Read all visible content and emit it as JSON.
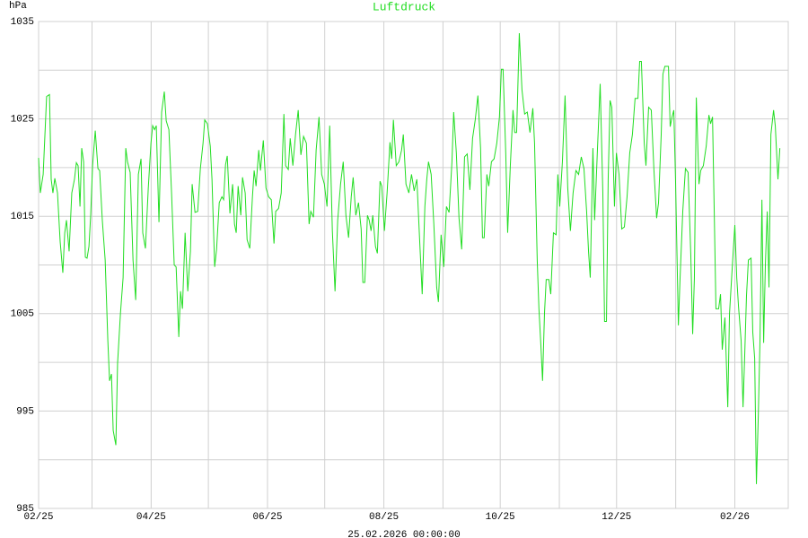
{
  "chart_data": {
    "type": "line",
    "title": "Luftdruck",
    "y_label": "hPa",
    "x_label": "25.02.2026 00:00:00",
    "color": "#22dd22",
    "grid": true,
    "xlim": [
      0,
      393
    ],
    "ylim": [
      985,
      1035
    ],
    "xticks": [
      {
        "value": 0,
        "label": "02/25"
      },
      {
        "value": 59,
        "label": "04/25"
      },
      {
        "value": 120,
        "label": "06/25"
      },
      {
        "value": 181,
        "label": "08/25"
      },
      {
        "value": 242,
        "label": "10/25"
      },
      {
        "value": 303,
        "label": "12/25"
      },
      {
        "value": 365,
        "label": "02/26"
      }
    ],
    "xminor": [
      28,
      89,
      150,
      212,
      273,
      334
    ],
    "yticks": [
      985,
      995,
      1005,
      1015,
      1025,
      1035
    ],
    "yminor": [
      990,
      1000,
      1010,
      1020,
      1030
    ],
    "x": [
      0,
      0.9,
      2.4,
      4.2,
      5.7,
      6.6,
      7.5,
      8.5,
      9.9,
      11.3,
      12.7,
      13.7,
      14.6,
      16,
      17.4,
      18.8,
      19.8,
      20.7,
      21.7,
      22.6,
      23.6,
      24.5,
      25.4,
      26.4,
      27.3,
      28.3,
      29.7,
      31.1,
      32,
      33.4,
      34.9,
      36.3,
      37.2,
      38.2,
      39.1,
      40.5,
      41.4,
      42.9,
      44.3,
      45.7,
      46.6,
      48,
      49.5,
      50.9,
      52.3,
      53.7,
      54.6,
      56,
      57.5,
      58.9,
      59.8,
      60.8,
      61.7,
      63.1,
      64.5,
      65.9,
      66.9,
      68.3,
      69.7,
      71.1,
      72.1,
      73.5,
      74.4,
      75.4,
      76.8,
      78.2,
      79.6,
      80.5,
      82,
      83.4,
      84.8,
      86.2,
      87.1,
      88.5,
      90,
      90.9,
      92.3,
      93.3,
      94.7,
      96.1,
      97,
      98,
      98.9,
      100.3,
      101.7,
      102.7,
      103.6,
      104.6,
      106,
      106.9,
      108.3,
      109.3,
      110.7,
      112.1,
      113,
      114,
      115.4,
      116.3,
      117.8,
      119.2,
      120.6,
      122,
      123.4,
      124.3,
      125.8,
      127.2,
      128.6,
      129.5,
      130.9,
      131.9,
      133.3,
      134.7,
      136.1,
      137.5,
      138.9,
      140.4,
      141.8,
      142.7,
      144.1,
      145.5,
      147,
      148.4,
      149.8,
      151.2,
      152.6,
      154,
      155.4,
      156.8,
      158.3,
      159.7,
      161.1,
      162.5,
      163.9,
      164.9,
      166.3,
      167.7,
      169.1,
      170,
      171,
      172.4,
      173.3,
      174.3,
      175.2,
      176.6,
      177.6,
      179,
      179.9,
      181.3,
      182.7,
      184.2,
      185.1,
      186,
      187.5,
      188.9,
      190.3,
      191.2,
      192.6,
      194.1,
      195.5,
      196.9,
      198.3,
      199.7,
      201.1,
      202.5,
      203.5,
      204.4,
      205.8,
      207.2,
      208.7,
      209.6,
      211,
      212.4,
      213.8,
      215.2,
      216.7,
      217.6,
      219,
      220.4,
      221.8,
      223.3,
      224.7,
      226.1,
      227.5,
      228.9,
      230.3,
      231.7,
      232.7,
      233.6,
      235,
      236,
      237.4,
      238.8,
      240.2,
      241.6,
      242.6,
      243.5,
      244.9,
      245.9,
      247.3,
      248.7,
      249.6,
      250.6,
      252,
      253.4,
      254.8,
      256.2,
      257.6,
      259.1,
      260,
      261.4,
      262.3,
      263.3,
      264.2,
      265.2,
      266.1,
      267.5,
      268.5,
      269.9,
      271.3,
      272.2,
      273.2,
      274.6,
      276,
      277.4,
      278.8,
      280.2,
      281.7,
      283.1,
      284.5,
      285.9,
      287.3,
      288.3,
      289.2,
      290.6,
      291.5,
      293,
      294.4,
      295.8,
      296.7,
      297.7,
      298.6,
      299.6,
      300.5,
      301.9,
      302.9,
      304.3,
      305.7,
      307.1,
      308.5,
      309.9,
      311.3,
      312.7,
      314.2,
      315.1,
      316,
      317.5,
      318.4,
      319.8,
      321.2,
      322.6,
      324,
      325,
      326.4,
      327.3,
      328.3,
      330.2,
      331.1,
      332.1,
      333,
      333.9,
      335.4,
      336.3,
      337.7,
      339.1,
      340.5,
      341.9,
      342.9,
      343.8,
      344.8,
      346.2,
      347.1,
      348.5,
      350,
      351.4,
      352.3,
      353.3,
      354.2,
      355.1,
      356.5,
      357.5,
      358.4,
      359.8,
      361.3,
      362.2,
      363.6,
      365,
      366,
      366.9,
      368.3,
      369.3,
      370.2,
      371.1,
      372.1,
      373.5,
      374.4,
      375.4,
      376.3,
      377.3,
      378.2,
      379.2,
      380.1,
      381,
      382,
      382.9,
      383.9,
      385.3,
      386.2,
      387.6,
      388.6
    ],
    "values": [
      1021,
      1017.4,
      1019.3,
      1027.3,
      1027.5,
      1018.8,
      1017.4,
      1018.9,
      1017.4,
      1012.4,
      1009.2,
      1013.3,
      1014.6,
      1011.4,
      1017.4,
      1018.8,
      1020.5,
      1020.2,
      1016,
      1022,
      1020.6,
      1010.8,
      1010.7,
      1011.9,
      1015.1,
      1020.2,
      1023.8,
      1019.9,
      1019.7,
      1014.6,
      1010.5,
      1002.2,
      998.1,
      998.8,
      993,
      991.5,
      999.9,
      1005,
      1008.7,
      1022,
      1020.6,
      1019.5,
      1010.5,
      1006.4,
      1019.3,
      1020.9,
      1013.3,
      1011.7,
      1017.9,
      1022.5,
      1024.3,
      1023.9,
      1024.3,
      1014.4,
      1025.7,
      1027.8,
      1024.8,
      1023.9,
      1017.4,
      1010,
      1009.8,
      1002.6,
      1007.3,
      1005.5,
      1013.3,
      1007.3,
      1011.4,
      1018.3,
      1015.4,
      1015.5,
      1019.9,
      1022.5,
      1024.9,
      1024.5,
      1022.2,
      1018.8,
      1009.8,
      1011.6,
      1016.4,
      1017,
      1016.7,
      1020.3,
      1021.2,
      1015.3,
      1018.3,
      1014.2,
      1013.3,
      1018.1,
      1015.1,
      1019,
      1017.4,
      1012.6,
      1011.7,
      1017,
      1019.7,
      1018.1,
      1021.8,
      1019.7,
      1022.8,
      1017.9,
      1017,
      1016.7,
      1012.2,
      1015.5,
      1015.8,
      1017.4,
      1025.5,
      1020.2,
      1019.8,
      1023,
      1020.2,
      1023.4,
      1025.9,
      1021.3,
      1023.2,
      1022.5,
      1014.2,
      1015.5,
      1014.9,
      1021.8,
      1025.2,
      1019.3,
      1018.3,
      1016,
      1024.3,
      1013.5,
      1007.3,
      1014.6,
      1018.3,
      1020.6,
      1015.1,
      1012.8,
      1017,
      1019,
      1015.1,
      1016.4,
      1013.7,
      1008.2,
      1008.2,
      1015.1,
      1014.6,
      1013.5,
      1015.1,
      1011.9,
      1011.2,
      1018.6,
      1018.1,
      1013.5,
      1017.4,
      1022.6,
      1020.9,
      1024.9,
      1020.2,
      1020.6,
      1021.8,
      1023.4,
      1018.3,
      1017.4,
      1019.3,
      1017.6,
      1018.8,
      1012.8,
      1007,
      1016,
      1018.8,
      1020.6,
      1019.3,
      1014.2,
      1007.7,
      1006.2,
      1013.1,
      1009.8,
      1016,
      1015.4,
      1020.6,
      1025.7,
      1021.5,
      1014.8,
      1011.6,
      1021.1,
      1021.4,
      1017.7,
      1023,
      1024.9,
      1027.4,
      1022,
      1012.8,
      1012.8,
      1019.3,
      1018.1,
      1020.6,
      1020.9,
      1022.5,
      1025.2,
      1030.1,
      1030.1,
      1021.5,
      1013.3,
      1020.2,
      1025.9,
      1023.6,
      1023.6,
      1033.8,
      1028,
      1025.5,
      1025.7,
      1023.6,
      1026.1,
      1022.5,
      1010.5,
      1005.5,
      1001.8,
      998.1,
      1005,
      1008.5,
      1008.5,
      1007,
      1013.3,
      1013.1,
      1019.3,
      1016,
      1020.6,
      1027.4,
      1017.9,
      1013.5,
      1017.4,
      1019.7,
      1019.3,
      1021.1,
      1019.9,
      1015.5,
      1011.4,
      1008.7,
      1022,
      1014.6,
      1022,
      1028.6,
      1017.4,
      1004.2,
      1004.2,
      1018.8,
      1026.9,
      1026.2,
      1016,
      1021.5,
      1019.3,
      1013.7,
      1013.9,
      1017,
      1021.5,
      1023.4,
      1027.1,
      1027.1,
      1030.9,
      1030.9,
      1022.5,
      1020.2,
      1026.2,
      1025.9,
      1019.7,
      1014.8,
      1016.4,
      1023.4,
      1029.6,
      1030.4,
      1030.4,
      1024.2,
      1025.2,
      1025.9,
      1018.8,
      1003.8,
      1008.7,
      1015.5,
      1019.9,
      1019.5,
      1011.1,
      1002.9,
      1008.7,
      1027.2,
      1018.3,
      1019.7,
      1020.2,
      1022.2,
      1025.4,
      1024.5,
      1025.2,
      1015.5,
      1005.5,
      1005.5,
      1007,
      1001.3,
      1004.6,
      995.4,
      1005,
      1009.6,
      1014.1,
      1008.7,
      1005.8,
      1002.2,
      995.4,
      1000.9,
      1006.8,
      1010.5,
      1010.7,
      1003.1,
      1000.4,
      987.5,
      994.5,
      1002.4,
      1016.7,
      1002,
      1010,
      1015.5,
      1007.7,
      1023.4,
      1025.9,
      1024.3,
      1018.8,
      1022
    ]
  }
}
